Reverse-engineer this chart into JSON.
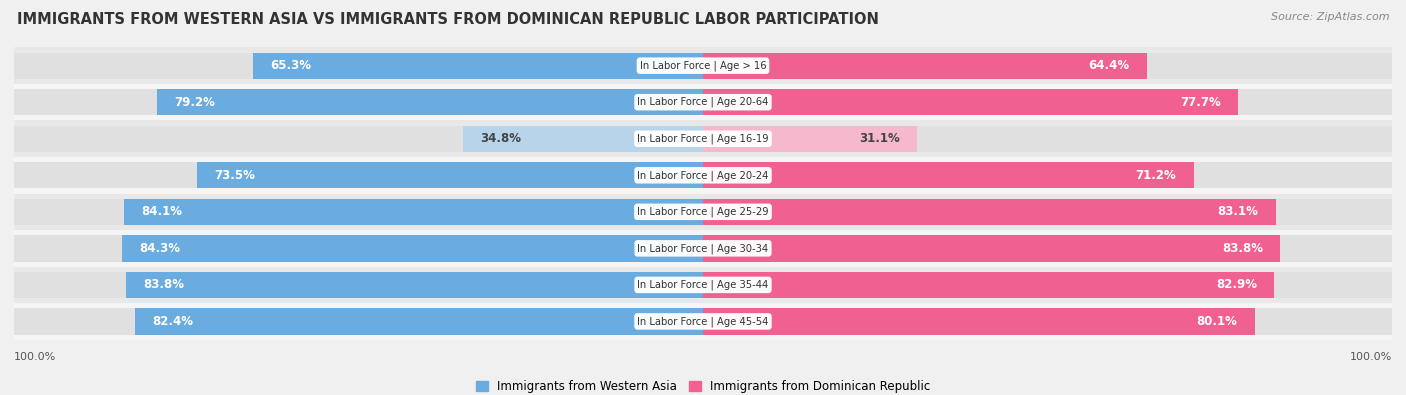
{
  "title": "IMMIGRANTS FROM WESTERN ASIA VS IMMIGRANTS FROM DOMINICAN REPUBLIC LABOR PARTICIPATION",
  "source": "Source: ZipAtlas.com",
  "categories": [
    "In Labor Force | Age > 16",
    "In Labor Force | Age 20-64",
    "In Labor Force | Age 16-19",
    "In Labor Force | Age 20-24",
    "In Labor Force | Age 25-29",
    "In Labor Force | Age 30-34",
    "In Labor Force | Age 35-44",
    "In Labor Force | Age 45-54"
  ],
  "western_asia": [
    65.3,
    79.2,
    34.8,
    73.5,
    84.1,
    84.3,
    83.8,
    82.4
  ],
  "dominican_republic": [
    64.4,
    77.7,
    31.1,
    71.2,
    83.1,
    83.8,
    82.9,
    80.1
  ],
  "color_western_asia": "#6aace0",
  "color_western_asia_light": "#b8d4eb",
  "color_dominican": "#f06090",
  "color_dominican_light": "#f5b8cc",
  "bg_color": "#f0f0f0",
  "bar_bg_color": "#e0e0e0",
  "row_bg_even": "#f5f5f5",
  "row_bg_odd": "#e8e8e8",
  "label_fontsize": 8.5,
  "title_fontsize": 10.5,
  "legend_fontsize": 8.5,
  "threshold_light": 50
}
